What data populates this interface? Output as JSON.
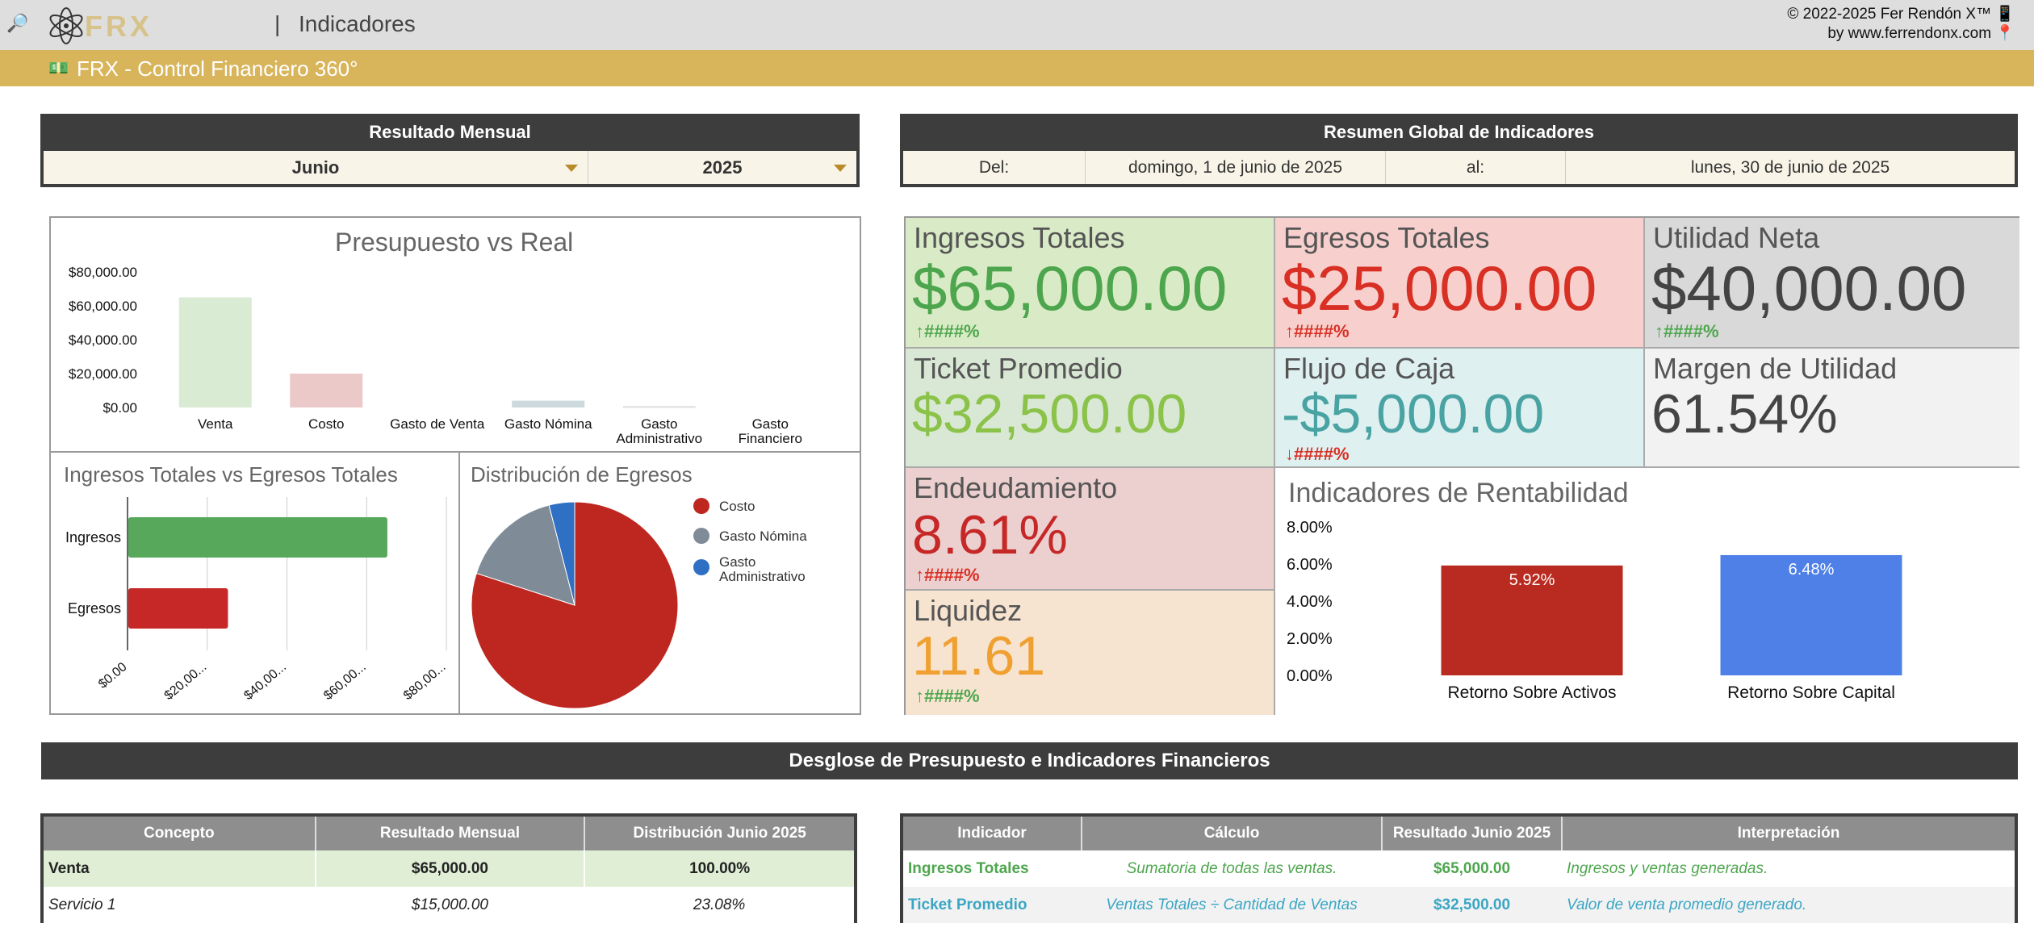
{
  "topbar": {
    "search_icon": "🔎",
    "logo_text": "FRX",
    "separator": "|",
    "page_title": "Indicadores",
    "copyright_line1": "© 2022-2025 Fer Rendón X™ 📱",
    "copyright_line2": "by www.ferrendonx.com 📍"
  },
  "subbar": {
    "icon": "💵",
    "title": "FRX - Control Financiero 360°"
  },
  "monthly": {
    "header": "Resultado Mensual",
    "month": "Junio",
    "year": "2025"
  },
  "global": {
    "header": "Resumen Global de Indicadores",
    "from_label": "Del:",
    "from_date": "domingo, 1 de junio de 2025",
    "to_label": "al:",
    "to_date": "lunes, 30 de junio de 2025"
  },
  "kpis": {
    "ingresos": {
      "label": "Ingresos Totales",
      "value": "$65,000.00",
      "delta": "####%",
      "arrow": "↑"
    },
    "egresos": {
      "label": "Egresos Totales",
      "value": "$25,000.00",
      "delta": "####%",
      "arrow": "↑"
    },
    "utilidad": {
      "label": "Utilidad Neta",
      "value": "$40,000.00",
      "delta": "####%",
      "arrow": "↑"
    },
    "ticket": {
      "label": "Ticket Promedio",
      "value": "$32,500.00"
    },
    "flujo": {
      "label": "Flujo de Caja",
      "value": "-$5,000.00",
      "delta": "####%",
      "arrow": "↓"
    },
    "margen": {
      "label": "Margen de Utilidad",
      "value": "61.54%"
    },
    "endeudamiento": {
      "label": "Endeudamiento",
      "value": "8.61%",
      "delta": "####%",
      "arrow": "↑"
    },
    "liquidez": {
      "label": "Liquidez",
      "value": "11.61",
      "delta": "####%",
      "arrow": "↑"
    }
  },
  "colors": {
    "green": "#4da64d",
    "red": "#d93025",
    "gray": "#444444",
    "lightgreen": "#8bc34a",
    "teal": "#4aa3a3",
    "orange": "#f0a030",
    "darkred": "#c62828",
    "bg_green": "#d9ebc6",
    "bg_red": "#f7d0cd",
    "bg_gray": "#d9d9d9",
    "bg_green2": "#d9e8d4",
    "bg_teal": "#dff0f0",
    "bg_light": "#f2f2f2",
    "bg_pink": "#ecd0d0",
    "bg_peach": "#f7e4d0",
    "accent_gold": "#d8b45a",
    "header_dark": "#3d3d3d"
  },
  "chart_data": [
    {
      "type": "bar",
      "title": "Presupuesto vs Real",
      "categories": [
        "Venta",
        "Costo",
        "Gasto de Venta",
        "Gasto Nómina",
        "Gasto Administrativo",
        "Gasto Financiero"
      ],
      "values": [
        65000,
        20000,
        0,
        4000,
        800,
        0
      ],
      "yticks": [
        "$80,000.00",
        "$60,000.00",
        "$40,000.00",
        "$20,000.00",
        "$0.00"
      ],
      "ylim": [
        0,
        80000
      ],
      "colors": [
        "#d9ebd3",
        "#ecc9c9",
        "#dddddd",
        "#cdd9dd",
        "#dddddd",
        "#dddddd"
      ]
    },
    {
      "type": "bar",
      "orientation": "horizontal",
      "title": "Ingresos Totales vs Egresos Totales",
      "categories": [
        "Ingresos",
        "Egresos"
      ],
      "values": [
        65000,
        25000
      ],
      "xticks": [
        "$0.00",
        "$20,00...",
        "$40,00...",
        "$60,00...",
        "$80,00..."
      ],
      "xlim": [
        0,
        80000
      ],
      "colors": [
        "#57a85b",
        "#c62828"
      ]
    },
    {
      "type": "pie",
      "title": "Distribución de Egresos",
      "labels": [
        "Costo",
        "Gasto Nómina",
        "Gasto Administrativo"
      ],
      "values": [
        80,
        16,
        4
      ],
      "colors": [
        "#be2720",
        "#7f8c98",
        "#2f6fc4"
      ]
    },
    {
      "type": "bar",
      "title": "Indicadores de Rentabilidad",
      "categories": [
        "Retorno Sobre Activos",
        "Retorno Sobre Capital"
      ],
      "values": [
        5.92,
        6.48
      ],
      "labels": [
        "5.92%",
        "6.48%"
      ],
      "yticks": [
        "8.00%",
        "6.00%",
        "4.00%",
        "2.00%",
        "0.00%"
      ],
      "ylim": [
        0,
        8
      ],
      "colors": [
        "#b92b20",
        "#4f80e8"
      ]
    }
  ],
  "breakdown": {
    "header": "Desglose de Presupuesto e Indicadores Financieros",
    "left_columns": [
      "Concepto",
      "Resultado Mensual",
      "Distribución Junio 2025"
    ],
    "left_rows": [
      [
        "Venta",
        "$65,000.00",
        "100.00%"
      ],
      [
        "Servicio 1",
        "$15,000.00",
        "23.08%"
      ]
    ],
    "right_columns": [
      "Indicador",
      "Cálculo",
      "Resultado Junio 2025",
      "Interpretación"
    ],
    "right_rows": [
      [
        "Ingresos Totales",
        "Sumatoria de todas las ventas.",
        "$65,000.00",
        "Ingresos y ventas generadas."
      ],
      [
        "Ticket Promedio",
        "Ventas Totales ÷ Cantidad de Ventas",
        "$32,500.00",
        "Valor de venta promedio generado."
      ]
    ]
  }
}
